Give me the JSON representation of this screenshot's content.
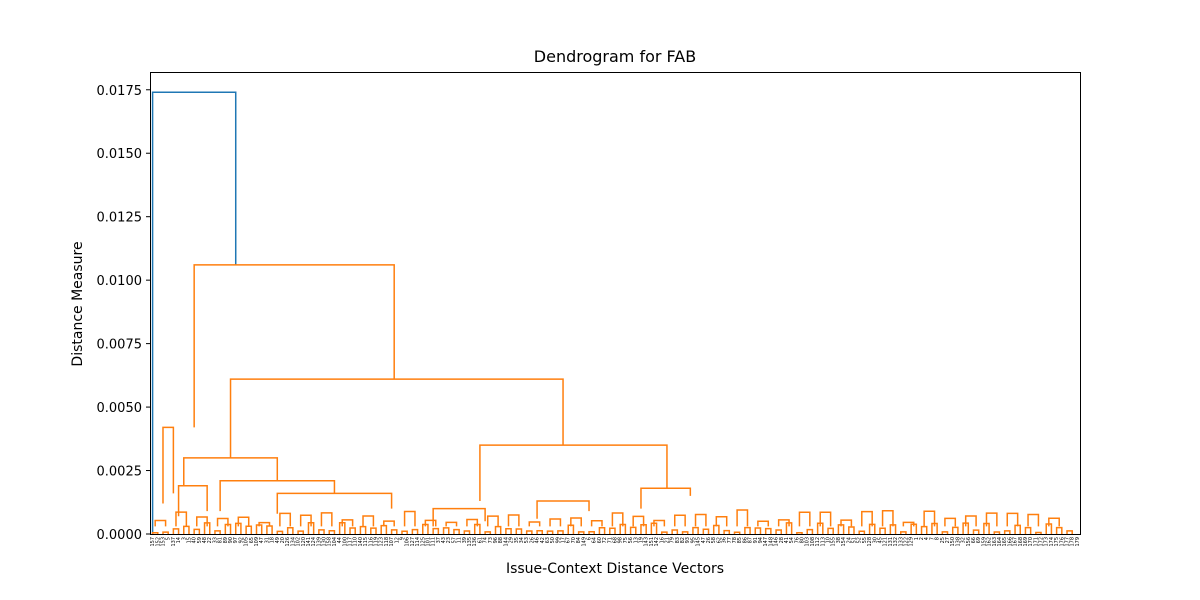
{
  "chart_data": {
    "type": "dendrogram",
    "title": "Dendrogram for FAB",
    "xlabel": "Issue-Context Distance Vectors",
    "ylabel": "Distance Measure",
    "ylim": [
      0,
      0.0182
    ],
    "yticks": [
      0.0,
      0.0025,
      0.005,
      0.0075,
      0.01,
      0.0125,
      0.015,
      0.0175
    ],
    "ytick_labels": [
      "0.0000",
      "0.0025",
      "0.0050",
      "0.0075",
      "0.0100",
      "0.0125",
      "0.0150",
      "0.0175"
    ],
    "leaf_labels": [
      "157",
      "152",
      "153",
      "5",
      "137",
      "14",
      "3",
      "15",
      "40",
      "59",
      "48",
      "22",
      "33",
      "81",
      "89",
      "90",
      "97",
      "92",
      "105",
      "65",
      "109",
      "47",
      "31",
      "18",
      "49",
      "20",
      "126",
      "134",
      "102",
      "120",
      "141",
      "124",
      "139",
      "130",
      "158",
      "104",
      "44",
      "100",
      "117",
      "110",
      "140",
      "115",
      "116",
      "119",
      "123",
      "118",
      "107",
      "12",
      "9",
      "106",
      "127",
      "114",
      "125",
      "101",
      "111",
      "37",
      "43",
      "23",
      "57",
      "11",
      "39",
      "135",
      "136",
      "61",
      "74",
      "73",
      "96",
      "88",
      "144",
      "29",
      "35",
      "34",
      "53",
      "26",
      "46",
      "42",
      "63",
      "50",
      "99",
      "17",
      "67",
      "70",
      "84",
      "149",
      "6",
      "64",
      "60",
      "72",
      "71",
      "68",
      "98",
      "75",
      "56",
      "13",
      "19",
      "143",
      "151",
      "142",
      "16",
      "21",
      "79",
      "83",
      "82",
      "93",
      "95",
      "145",
      "47",
      "26",
      "58",
      "62",
      "36",
      "77",
      "78",
      "85",
      "86",
      "87",
      "91",
      "94",
      "147",
      "148",
      "146",
      "28",
      "41",
      "54",
      "76",
      "80",
      "103",
      "108",
      "112",
      "113",
      "10",
      "155",
      "38",
      "154",
      "24",
      "51",
      "52",
      "55",
      "128",
      "30",
      "45",
      "121",
      "131",
      "132",
      "133",
      "122",
      "129",
      "1",
      "2",
      "4",
      "7",
      "8",
      "25",
      "27",
      "150",
      "138",
      "32",
      "156",
      "66",
      "69",
      "159",
      "162",
      "163",
      "164",
      "165",
      "166",
      "167",
      "168",
      "169",
      "170",
      "171",
      "172",
      "173",
      "174",
      "175",
      "176",
      "177",
      "178",
      "179"
    ],
    "colors": {
      "above_threshold": "#1f77b4",
      "cluster": "#ff7f0e"
    },
    "links": [
      {
        "color": "#1f77b4",
        "x": [
          5,
          5,
          165,
          165
        ],
        "y": [
          0,
          0.0174,
          0.0174,
          0.0106
        ]
      },
      {
        "color": "#ff7f0e",
        "x": [
          85,
          85,
          470,
          470
        ],
        "y": [
          0.0042,
          0.0106,
          0.0106,
          0.0061
        ]
      },
      {
        "color": "#ff7f0e",
        "x": [
          155,
          155,
          795,
          795
        ],
        "y": [
          0.003,
          0.0061,
          0.0061,
          0.0035
        ]
      },
      {
        "color": "#ff7f0e",
        "x": [
          65,
          65,
          245,
          245
        ],
        "y": [
          0.0019,
          0.003,
          0.003,
          0.0021
        ]
      },
      {
        "color": "#ff7f0e",
        "x": [
          55,
          55,
          110,
          110
        ],
        "y": [
          0.0007,
          0.0019,
          0.0019,
          0.0009
        ]
      },
      {
        "color": "#ff7f0e",
        "x": [
          135,
          135,
          355,
          355
        ],
        "y": [
          0.0009,
          0.0021,
          0.0021,
          0.0016
        ]
      },
      {
        "color": "#ff7f0e",
        "x": [
          245,
          245,
          465,
          465
        ],
        "y": [
          0.0008,
          0.0016,
          0.0016,
          0.001
        ]
      },
      {
        "color": "#ff7f0e",
        "x": [
          635,
          635,
          995,
          995
        ],
        "y": [
          0.0013,
          0.0035,
          0.0035,
          0.0018
        ]
      },
      {
        "color": "#ff7f0e",
        "x": [
          25,
          25,
          45,
          45
        ],
        "y": [
          0.0012,
          0.0042,
          0.0042,
          0.0016
        ]
      },
      {
        "color": "#ff7f0e",
        "x": [
          945,
          945,
          1040,
          1040
        ],
        "y": [
          0.001,
          0.0018,
          0.0018,
          0.0015
        ]
      },
      {
        "color": "#ff7f0e",
        "x": [
          745,
          745,
          845,
          845
        ],
        "y": [
          0.0006,
          0.0013,
          0.0013,
          0.0009
        ]
      },
      {
        "color": "#ff7f0e",
        "x": [
          545,
          545,
          645,
          645
        ],
        "y": [
          0.0003,
          0.001,
          0.001,
          0.0005
        ]
      }
    ]
  }
}
